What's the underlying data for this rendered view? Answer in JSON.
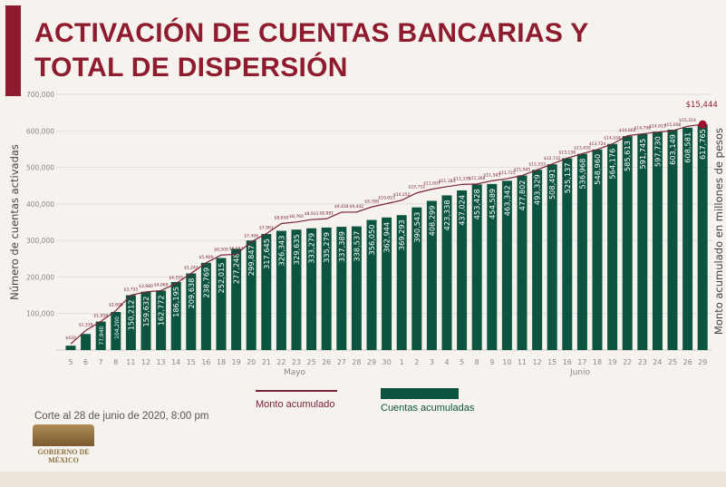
{
  "title": {
    "line1": "ACTIVACIÓN DE CUENTAS BANCARIAS Y",
    "line2": "TOTAL DE DISPERSIÓN"
  },
  "footnote": "Corte al 28 de junio de 2020, 8:00 pm",
  "logo_text": "GOBIERNO DE MÉXICO",
  "colors": {
    "bars": "#0d5440",
    "line": "#7a2236",
    "title": "#8e1b2e",
    "grid": "#d8d8d8"
  },
  "chart_data": {
    "type": "bar+line",
    "ylabel_left": "Número de cuentas activadas",
    "ylabel_right": "Monto acumulado en millones de pesos",
    "ylim": [
      0,
      700000
    ],
    "yticks": [
      "100,000",
      "200,000",
      "300,000",
      "400,000",
      "500,000",
      "600,000",
      "700,000"
    ],
    "grid": true,
    "legend": "bottom",
    "month_labels": [
      "Mayo",
      "Junio"
    ],
    "categories": [
      "5",
      "6",
      "7",
      "8",
      "11",
      "12",
      "13",
      "14",
      "15",
      "16",
      "18",
      "19",
      "20",
      "21",
      "22",
      "23",
      "25",
      "26",
      "27",
      "28",
      "29",
      "30",
      "1",
      "2",
      "3",
      "4",
      "5",
      "8",
      "9",
      "10",
      "11",
      "12",
      "15",
      "16",
      "17",
      "18",
      "19",
      "22",
      "23",
      "24",
      "25",
      "26",
      "29"
    ],
    "series": [
      {
        "name": "Cuentas acumuladas",
        "type": "bar",
        "values": [
          12000,
          44000,
          77940,
          104200,
          150212,
          159632,
          162772,
          186195,
          209638,
          238769,
          252015,
          277248,
          299847,
          317645,
          326343,
          329635,
          333279,
          335279,
          337389,
          338537,
          356050,
          362944,
          369293,
          390543,
          408299,
          423338,
          437024,
          453428,
          454589,
          463342,
          477802,
          493329,
          508491,
          525137,
          536968,
          548960,
          564176,
          585613,
          591745,
          597730,
          603149,
          608581,
          617765
        ]
      },
      {
        "name": "Monto acumulado",
        "type": "line",
        "values": [
          420,
          1339,
          1958,
          2695,
          3755,
          3980,
          4069,
          4555,
          5243,
          5969,
          6500,
          6553,
          7406,
          7961,
          8658,
          8760,
          8931,
          8981,
          9434,
          9442,
          9789,
          10023,
          10252,
          10752,
          11007,
          11183,
          11335,
          11366,
          11583,
          11725,
          11945,
          12333,
          12732,
          13138,
          13435,
          13724,
          14104,
          14660,
          14798,
          14913,
          15008,
          15314,
          15444
        ]
      }
    ],
    "highlight_label": "$15,444"
  }
}
